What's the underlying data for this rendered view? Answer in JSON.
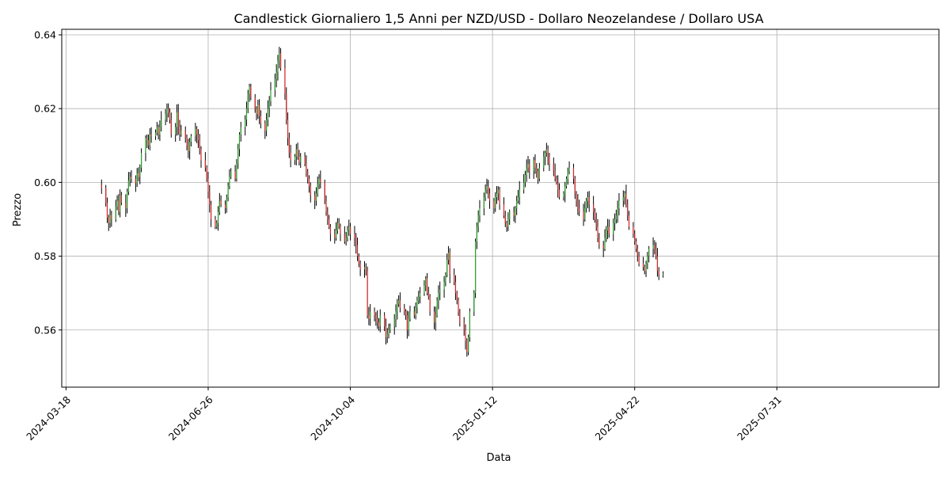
{
  "chart_data": {
    "type": "candlestick",
    "title": "Candlestick Giornaliero 1,5 Anni per NZD/USD - Dollaro Neozelandese / Dollaro USA",
    "xlabel": "Data",
    "ylabel": "Prezzo",
    "grid": true,
    "xlim": [
      "2024-03-15",
      "2025-11-22"
    ],
    "ylim": [
      0.5445,
      0.6415
    ],
    "x_ticks": [
      "2024-03-18",
      "2024-06-26",
      "2024-10-04",
      "2025-01-12",
      "2025-04-22",
      "2025-07-31"
    ],
    "y_ticks": [
      0.56,
      0.58,
      0.6,
      0.62,
      0.64
    ],
    "y_tick_labels": [
      "0.56",
      "0.58",
      "0.60",
      "0.62",
      "0.64"
    ],
    "colors": {
      "up": "#2ca02c",
      "down": "#d62728",
      "wick": "#000000",
      "grid": "#b0b0b0"
    },
    "start_date": "2024-04-12",
    "closes": [
      0.5985,
      0.5945,
      0.5905,
      0.589,
      0.5912,
      0.59,
      0.5935,
      0.595,
      0.592,
      0.5965,
      0.5945,
      0.593,
      0.5975,
      0.6005,
      0.6015,
      0.601,
      0.5998,
      0.6025,
      0.6015,
      0.604,
      0.608,
      0.612,
      0.6115,
      0.61,
      0.613,
      0.6125,
      0.6135,
      0.615,
      0.613,
      0.615,
      0.617,
      0.6185,
      0.62,
      0.619,
      0.617,
      0.613,
      0.615,
      0.619,
      0.615,
      0.613,
      0.614,
      0.612,
      0.61,
      0.6085,
      0.611,
      0.6125,
      0.6145,
      0.613,
      0.6115,
      0.609,
      0.606,
      0.604,
      0.601,
      0.5975,
      0.594,
      0.59,
      0.588,
      0.589,
      0.592,
      0.595,
      0.594,
      0.593,
      0.596,
      0.599,
      0.6015,
      0.603,
      0.601,
      0.605,
      0.609,
      0.613,
      0.615,
      0.617,
      0.62,
      0.624,
      0.626,
      0.623,
      0.62,
      0.6185,
      0.621,
      0.618,
      0.616,
      0.614,
      0.617,
      0.62,
      0.622,
      0.625,
      0.628,
      0.63,
      0.633,
      0.635,
      0.631,
      0.624,
      0.617,
      0.612,
      0.608,
      0.606,
      0.607,
      0.609,
      0.607,
      0.6055,
      0.607,
      0.605,
      0.603,
      0.601,
      0.599,
      0.5965,
      0.595,
      0.597,
      0.5995,
      0.601,
      0.6,
      0.595,
      0.592,
      0.59,
      0.588,
      0.586,
      0.585,
      0.587,
      0.589,
      0.588,
      0.586,
      0.584,
      0.585,
      0.587,
      0.588,
      0.586,
      0.585,
      0.583,
      0.58,
      0.578,
      0.5765,
      0.577,
      0.576,
      0.564,
      0.563,
      0.565,
      0.564,
      0.563,
      0.562,
      0.561,
      0.564,
      0.561,
      0.558,
      0.559,
      0.56,
      0.561,
      0.563,
      0.565,
      0.567,
      0.568,
      0.566,
      0.565,
      0.564,
      0.56,
      0.563,
      0.565,
      0.564,
      0.566,
      0.568,
      0.569,
      0.57,
      0.572,
      0.574,
      0.57,
      0.569,
      0.565,
      0.562,
      0.564,
      0.568,
      0.57,
      0.571,
      0.573,
      0.575,
      0.579,
      0.581,
      0.575,
      0.573,
      0.57,
      0.568,
      0.565,
      0.562,
      0.56,
      0.557,
      0.554,
      0.558,
      0.565,
      0.57,
      0.584,
      0.588,
      0.591,
      0.593,
      0.596,
      0.598,
      0.599,
      0.597,
      0.595,
      0.593,
      0.596,
      0.597,
      0.598,
      0.594,
      0.591,
      0.589,
      0.588,
      0.59,
      0.592,
      0.591,
      0.593,
      0.595,
      0.596,
      0.598,
      0.6,
      0.602,
      0.604,
      0.605,
      0.603,
      0.606,
      0.604,
      0.603,
      0.601,
      0.604,
      0.607,
      0.608,
      0.609,
      0.607,
      0.605,
      0.603,
      0.601,
      0.6,
      0.598,
      0.596,
      0.597,
      0.599,
      0.601,
      0.603,
      0.604,
      0.601,
      0.597,
      0.595,
      0.593,
      0.592,
      0.59,
      0.593,
      0.595,
      0.596,
      0.594,
      0.592,
      0.59,
      0.588,
      0.585,
      0.583,
      0.582,
      0.585,
      0.587,
      0.588,
      0.586,
      0.589,
      0.59,
      0.591,
      0.593,
      0.595,
      0.596,
      0.597,
      0.594,
      0.591,
      0.588,
      0.586,
      0.584,
      0.582,
      0.58,
      0.578,
      0.577,
      0.576,
      0.578,
      0.58,
      0.582,
      0.583,
      0.582,
      0.58,
      0.576,
      0.575,
      0.5752
    ]
  }
}
